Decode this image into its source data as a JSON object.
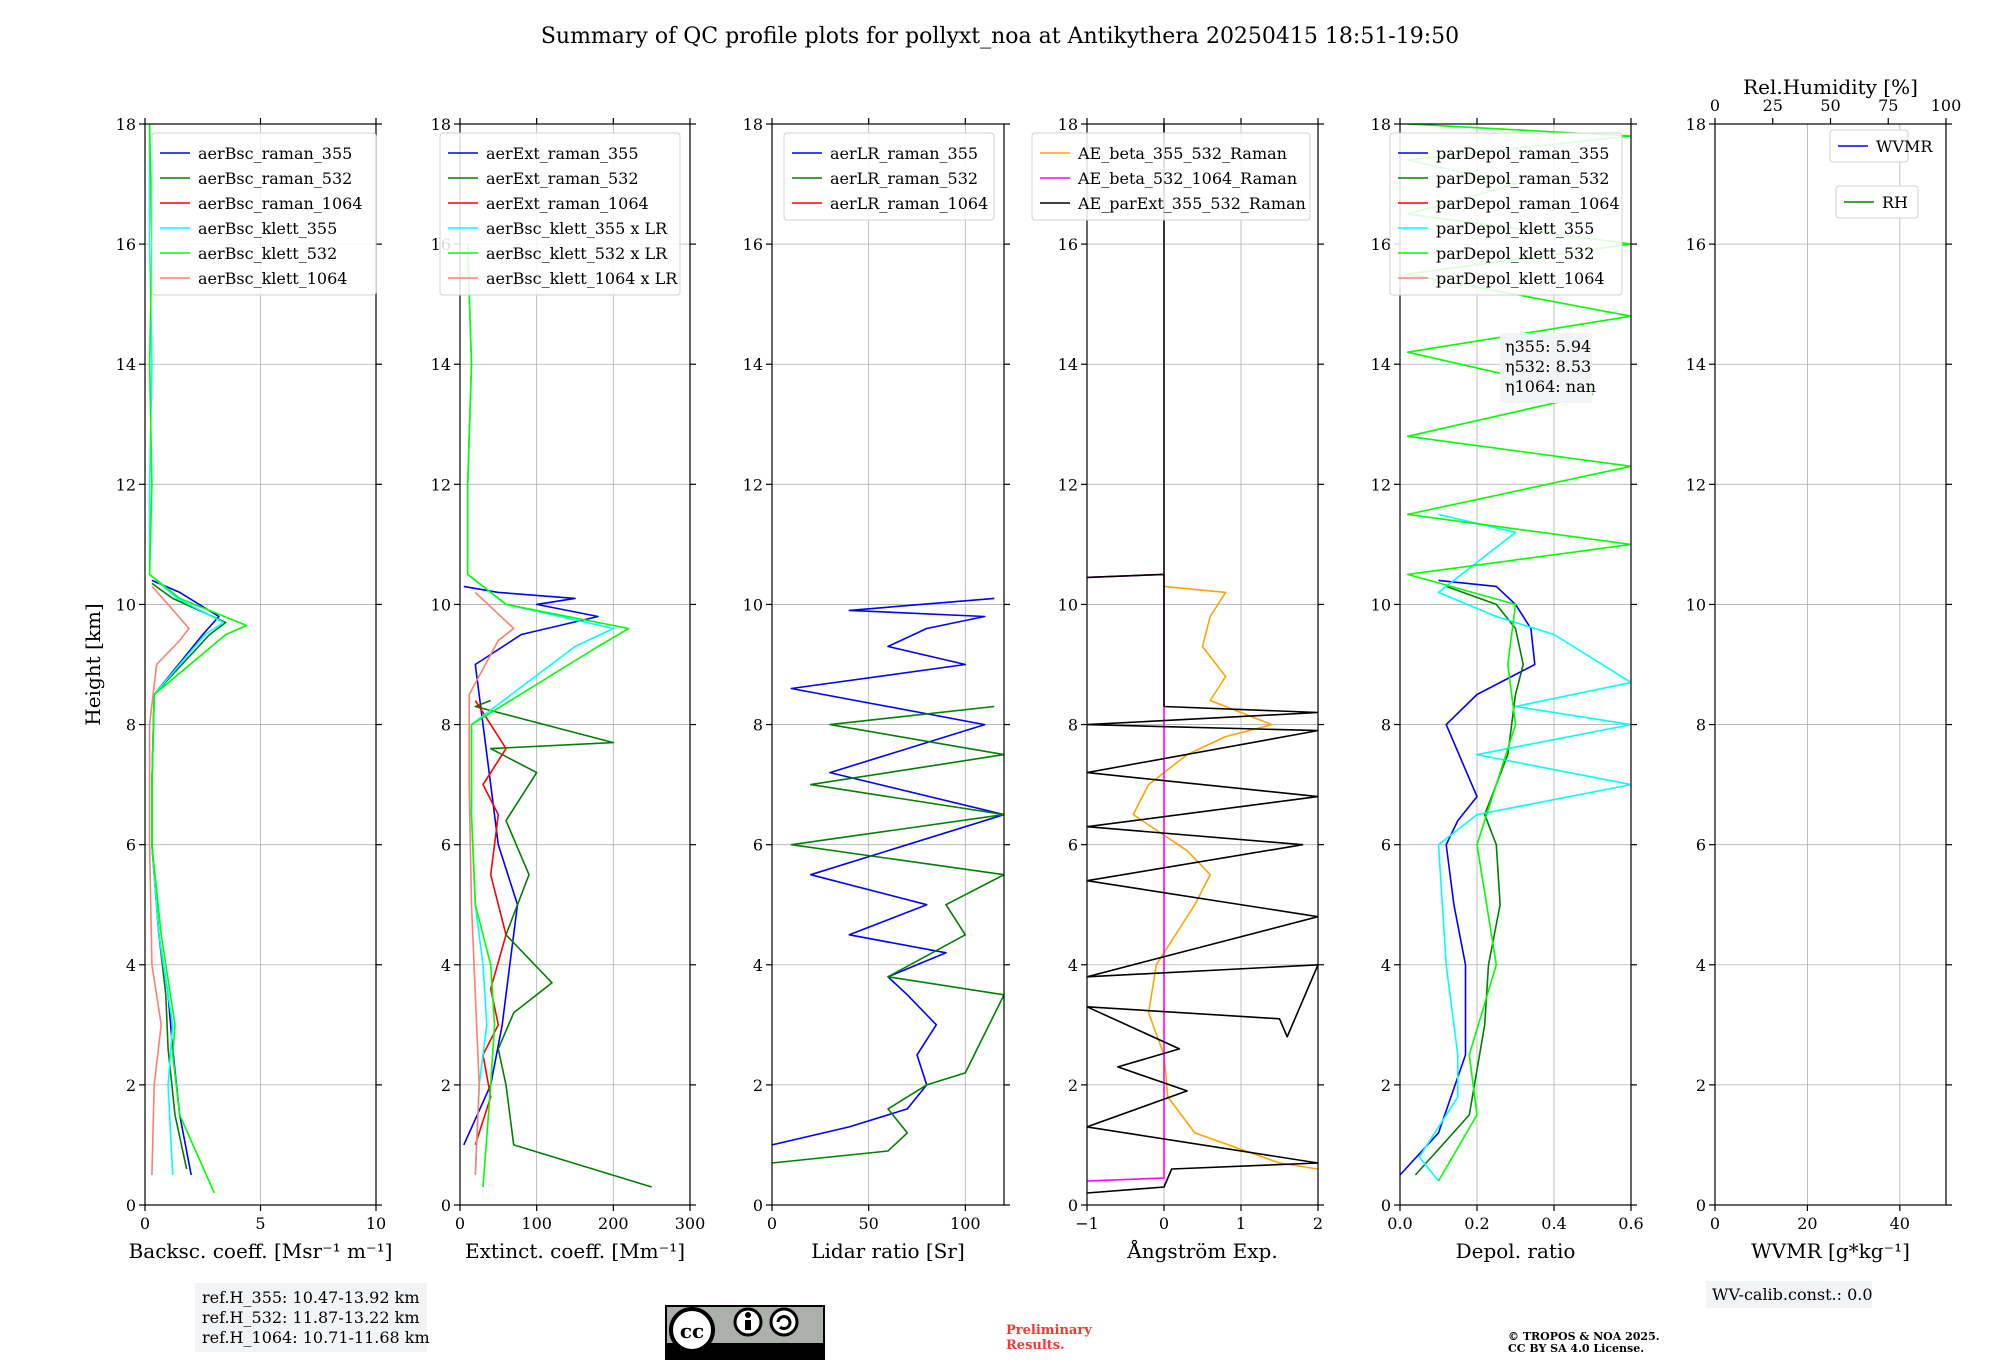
{
  "title": "Summary of QC profile plots for pollyxt_noa at Antikythera 20250415 18:51-19:50",
  "colors": {
    "c355": "#0000ff",
    "c532": "#008000",
    "c1064": "#ff0000",
    "k355": "#00ffff",
    "k532": "#00ff00",
    "k1064": "#fa8072",
    "ae1": "#ffa500",
    "ae2": "#ff00ff",
    "ae3": "#000000",
    "rh": "#008000"
  },
  "info": {
    "refh": [
      "ref.H_355: 10.47-13.92 km",
      "ref.H_532: 11.87-13.22 km",
      "ref.H_1064: 10.71-11.68 km"
    ],
    "eta": [
      "η355: 5.94",
      "η532: 8.53",
      "η1064: nan"
    ],
    "wv_calib": "WV-calib.const.: 0.0",
    "cc_by": "BY",
    "cc_sa": "SA",
    "preliminary": [
      "Preliminary",
      "Results."
    ],
    "copyright": [
      "© TROPOS & NOA 2025.",
      "CC BY SA 4.0 License."
    ],
    "hidden_lr_text": [
      "0",
      "0",
      "1064 x LR"
    ]
  },
  "chart_data": [
    {
      "type": "line",
      "id": "bsc",
      "xlabel": "Backsc. coeff. [Msr⁻¹ m⁻¹]",
      "ylabel": "Height [km]",
      "xlim": [
        0,
        10
      ],
      "ylim": [
        0,
        18
      ],
      "xticks": [
        0,
        5,
        10
      ],
      "yticks": [
        0,
        2,
        4,
        6,
        8,
        10,
        12,
        14,
        16,
        18
      ],
      "legend": [
        "aerBsc_raman_355",
        "aerBsc_raman_532",
        "aerBsc_raman_1064",
        "aerBsc_klett_355",
        "aerBsc_klett_532",
        "aerBsc_klett_1064"
      ],
      "series": [
        {
          "name": "aerBsc_raman_355",
          "color": "#0000ff",
          "x": [
            2,
            1.5,
            1.2,
            1.0,
            0.6,
            0.3,
            0.3,
            0.4,
            2.5,
            3.2,
            1.5,
            0.3
          ],
          "y": [
            0.5,
            1.5,
            2.6,
            3.5,
            4.5,
            6,
            7,
            8.5,
            9.5,
            9.8,
            10.2,
            10.4
          ]
        },
        {
          "name": "aerBsc_raman_532",
          "color": "#008000",
          "x": [
            1.8,
            1.3,
            1.0,
            0.9,
            0.6,
            0.3,
            0.3,
            0.4,
            2.8,
            3.5,
            1.2,
            0.3
          ],
          "y": [
            0.6,
            1.5,
            2.6,
            3.5,
            4.5,
            6,
            7,
            8.5,
            9.5,
            9.7,
            10.1,
            10.35
          ]
        },
        {
          "name": "aerBsc_klett_355",
          "color": "#00ffff",
          "x": [
            1.2,
            1.0,
            1.2,
            1.0,
            0.6,
            0.3,
            0.3,
            0.4,
            2.6,
            3.4,
            1.4,
            0.2,
            0.2,
            0.3,
            0.2,
            0.2
          ],
          "y": [
            0.5,
            2.0,
            3.0,
            3.5,
            4.5,
            6,
            7,
            8.5,
            9.5,
            9.7,
            10.1,
            10.5,
            12,
            14,
            16,
            18
          ]
        },
        {
          "name": "aerBsc_klett_532",
          "color": "#00ff00",
          "x": [
            3,
            1.5,
            1.2,
            1.3,
            0.7,
            0.3,
            0.3,
            0.4,
            3.5,
            4.4,
            1.5,
            0.2,
            0.3,
            0.2,
            0.3,
            0.2
          ],
          "y": [
            0.2,
            1.5,
            2.5,
            3.0,
            4.5,
            6,
            7,
            8.5,
            9.5,
            9.65,
            10.1,
            10.5,
            12,
            14,
            16,
            18
          ]
        },
        {
          "name": "aerBsc_klett_1064",
          "color": "#fa8072",
          "x": [
            0.3,
            0.4,
            0.7,
            0.3,
            0.2,
            0.2,
            0.5,
            1.5,
            1.9,
            1.0,
            0.3
          ],
          "y": [
            0.5,
            2.0,
            3.0,
            4.0,
            6.0,
            8.0,
            9.0,
            9.4,
            9.6,
            10.0,
            10.3
          ]
        }
      ]
    },
    {
      "type": "line",
      "id": "ext",
      "xlabel": "Extinct. coeff. [Mm⁻¹]",
      "xlim": [
        0,
        300
      ],
      "ylim": [
        0,
        18
      ],
      "xticks": [
        0,
        100,
        200,
        300
      ],
      "yticks": [
        0,
        2,
        4,
        6,
        8,
        10,
        12,
        14,
        16,
        18
      ],
      "legend": [
        "aerExt_raman_355",
        "aerExt_raman_532",
        "aerExt_raman_1064",
        "aerBsc_klett_355 x LR",
        "aerBsc_klett_532 x LR",
        "aerBsc_klett_1064 x LR"
      ],
      "series": [
        {
          "name": "aerExt_raman_355",
          "color": "#0000ff",
          "x": [
            5,
            40,
            55,
            60,
            65,
            75,
            50,
            40,
            30,
            20,
            80,
            180,
            100,
            150,
            50,
            5
          ],
          "y": [
            1.0,
            2.0,
            3.0,
            3.5,
            4.0,
            5.0,
            6.0,
            7.0,
            8.0,
            9.0,
            9.5,
            9.8,
            10.0,
            10.1,
            10.2,
            10.3
          ]
        },
        {
          "name": "aerExt_raman_532",
          "color": "#008000",
          "x": [
            250,
            70,
            60,
            50,
            70,
            120,
            60,
            90,
            60,
            100,
            40,
            200,
            20,
            40
          ],
          "y": [
            0.3,
            1.0,
            2.0,
            2.6,
            3.2,
            3.7,
            4.5,
            5.5,
            6.4,
            7.2,
            7.6,
            7.7,
            8.3,
            8.4
          ]
        },
        {
          "name": "aerExt_raman_1064",
          "color": "#ff0000",
          "x": [
            20,
            40,
            30,
            50,
            40,
            60,
            40,
            50,
            30,
            60,
            40,
            20
          ],
          "y": [
            1.0,
            1.8,
            2.5,
            3.0,
            3.6,
            4.5,
            5.5,
            6.5,
            7.0,
            7.6,
            8.0,
            8.4
          ]
        },
        {
          "name": "aerBsc_klett_355 x LR",
          "color": "#00ffff",
          "x": [
            20,
            25,
            35,
            30,
            20,
            15,
            15,
            150,
            200,
            60,
            10,
            10,
            15,
            10
          ],
          "y": [
            0.5,
            2.0,
            3.0,
            4.0,
            5.0,
            6.5,
            8.0,
            9.3,
            9.6,
            10.0,
            10.5,
            12,
            14,
            16
          ]
        },
        {
          "name": "aerBsc_klett_532 x LR",
          "color": "#00ff00",
          "x": [
            30,
            40,
            45,
            40,
            20,
            15,
            15,
            180,
            220,
            60,
            10,
            10,
            15,
            10
          ],
          "y": [
            0.3,
            2.0,
            3.0,
            4.0,
            5.0,
            6.5,
            8.0,
            9.3,
            9.6,
            10.0,
            10.5,
            12,
            14,
            16
          ]
        },
        {
          "name": "aerBsc_klett_1064 x LR",
          "color": "#fa8072",
          "x": [
            20,
            25,
            20,
            15,
            12,
            12,
            50,
            70,
            20
          ],
          "y": [
            0.5,
            2.0,
            3.5,
            5.0,
            7.0,
            8.5,
            9.4,
            9.6,
            10.2
          ]
        }
      ]
    },
    {
      "type": "line",
      "id": "lr",
      "xlabel": "Lidar ratio [Sr]",
      "xlim": [
        0,
        120
      ],
      "ylim": [
        0,
        18
      ],
      "xticks": [
        0,
        50,
        100
      ],
      "yticks": [
        0,
        2,
        4,
        6,
        8,
        10,
        12,
        14,
        16,
        18
      ],
      "legend": [
        "aerLR_raman_355",
        "aerLR_raman_532",
        "aerLR_raman_1064"
      ],
      "series": [
        {
          "name": "aerLR_raman_355",
          "color": "#0000ff",
          "x": [
            0,
            40,
            70,
            80,
            75,
            85,
            70,
            60,
            90,
            40,
            80,
            20,
            120,
            30,
            110,
            10,
            100,
            60,
            80,
            110,
            40,
            115
          ],
          "y": [
            1.0,
            1.3,
            1.6,
            2.0,
            2.5,
            3.0,
            3.5,
            3.8,
            4.2,
            4.5,
            5.0,
            5.5,
            6.5,
            7.2,
            8.0,
            8.6,
            9.0,
            9.3,
            9.6,
            9.8,
            9.9,
            10.1
          ]
        },
        {
          "name": "aerLR_raman_532",
          "color": "#008000",
          "x": [
            0,
            60,
            70,
            60,
            80,
            100,
            120,
            60,
            100,
            90,
            120,
            10,
            120,
            20,
            120,
            30,
            115
          ],
          "y": [
            0.7,
            0.9,
            1.2,
            1.6,
            2.0,
            2.2,
            3.5,
            3.8,
            4.5,
            5.0,
            5.5,
            6.0,
            6.5,
            7.0,
            7.5,
            8.0,
            8.3
          ]
        }
      ]
    },
    {
      "type": "line",
      "id": "ae",
      "xlabel": "Ångström Exp.",
      "xlim": [
        -1,
        2
      ],
      "ylim": [
        0,
        18
      ],
      "xticks": [
        -1,
        0,
        1,
        2
      ],
      "yticks": [
        0,
        2,
        4,
        6,
        8,
        10,
        12,
        14,
        16,
        18
      ],
      "legend": [
        "AE_beta_355_532_Raman",
        "AE_beta_532_1064_Raman",
        "AE_parExt_355_532_Raman"
      ],
      "series": [
        {
          "name": "AE_beta_355_532_Raman",
          "color": "#ffa500",
          "x": [
            2,
            1.5,
            0.4,
            0.05,
            0,
            -0.2,
            -0.1,
            0.2,
            0.4,
            0.6,
            0.3,
            -0.4,
            -0.2,
            0.3,
            0.8,
            1.4,
            0.6,
            0.8,
            0.5,
            0.6,
            0.8,
            0,
            0
          ],
          "y": [
            0.6,
            0.7,
            1.2,
            1.8,
            2.5,
            3.2,
            4.0,
            4.6,
            5.0,
            5.5,
            5.9,
            6.5,
            7.0,
            7.5,
            7.8,
            8.0,
            8.4,
            8.8,
            9.3,
            9.8,
            10.2,
            10.3,
            10.5
          ]
        },
        {
          "name": "AE_beta_532_1064_Raman",
          "color": "#ff00ff",
          "x": [
            -1,
            0,
            0,
            -1
          ],
          "y": [
            0.4,
            0.45,
            10.5,
            10.45
          ]
        },
        {
          "name": "AE_parExt_355_532_Raman",
          "color": "#000000",
          "x": [
            -1,
            0,
            0.1,
            2,
            -1,
            0.3,
            -0.6,
            0.2,
            -1,
            1.5,
            1.6,
            2,
            -1,
            2,
            -1,
            1.8,
            -1,
            2,
            -1,
            2,
            -1,
            2,
            0,
            0,
            -1
          ],
          "y": [
            0.2,
            0.3,
            0.6,
            0.7,
            1.3,
            1.9,
            2.3,
            2.6,
            3.3,
            3.1,
            2.8,
            4.0,
            3.8,
            4.8,
            5.4,
            6.0,
            6.3,
            6.8,
            7.2,
            7.9,
            8.0,
            8.2,
            8.3,
            10.5,
            10.45
          ]
        },
        {
          "name": "AE_parExt_355_532_Raman_top",
          "color": "#000000",
          "x": [
            0,
            0
          ],
          "y": [
            10.5,
            18
          ]
        }
      ]
    },
    {
      "type": "line",
      "id": "depol",
      "xlabel": "Depol. ratio",
      "xlim": [
        0,
        0.6
      ],
      "ylim": [
        0,
        18
      ],
      "xticks": [
        0.0,
        0.2,
        0.4,
        0.6
      ],
      "yticks": [
        0,
        2,
        4,
        6,
        8,
        10,
        12,
        14,
        16,
        18
      ],
      "legend": [
        "parDepol_raman_355",
        "parDepol_raman_532",
        "parDepol_raman_1064",
        "parDepol_klett_355",
        "parDepol_klett_532",
        "parDepol_klett_1064"
      ],
      "series": [
        {
          "name": "parDepol_raman_355",
          "color": "#0000ff",
          "x": [
            0.0,
            0.1,
            0.17,
            0.17,
            0.14,
            0.12,
            0.15,
            0.2,
            0.12,
            0.2,
            0.35,
            0.34,
            0.3,
            0.25,
            0.1
          ],
          "y": [
            0.5,
            1.2,
            2.5,
            4.0,
            5.0,
            6.0,
            6.4,
            6.8,
            8.0,
            8.5,
            9.0,
            9.6,
            10.0,
            10.3,
            10.4
          ]
        },
        {
          "name": "parDepol_raman_532",
          "color": "#008000",
          "x": [
            0.04,
            0.18,
            0.22,
            0.23,
            0.26,
            0.25,
            0.22,
            0.28,
            0.3,
            0.32,
            0.3,
            0.25,
            0.12
          ],
          "y": [
            0.5,
            1.5,
            3.0,
            4.0,
            5.0,
            6.0,
            6.5,
            7.5,
            8.5,
            9.0,
            9.6,
            10.0,
            10.3
          ]
        },
        {
          "name": "parDepol_klett_355",
          "color": "#00ffff",
          "x": [
            0.1,
            0.05,
            0.15,
            0.15,
            0.12,
            0.1,
            0.2,
            0.6,
            0.2,
            0.6,
            0.3,
            0.6,
            0.4,
            0.25,
            0.1,
            0.3,
            0.1
          ],
          "y": [
            0.4,
            0.8,
            1.8,
            2.5,
            4.0,
            6.0,
            6.5,
            7.0,
            7.5,
            8.0,
            8.3,
            8.7,
            9.5,
            9.8,
            10.2,
            11.2,
            11.5
          ]
        },
        {
          "name": "parDepol_klett_532",
          "color": "#00ff00",
          "x": [
            0.1,
            0.2,
            0.18,
            0.25,
            0.2,
            0.3,
            0.28,
            0.3,
            0.02,
            0.6,
            0.02,
            0.6,
            0.02,
            0.5,
            0.02,
            0.6,
            0.02,
            0.6,
            0.02,
            0.3,
            0.02,
            0.6,
            0.02
          ],
          "y": [
            0.4,
            1.5,
            2.5,
            4.0,
            6.0,
            8.0,
            9.0,
            10.0,
            10.5,
            11.0,
            11.5,
            12.3,
            12.8,
            13.5,
            14.2,
            14.8,
            15.5,
            16.0,
            16.5,
            17.0,
            17.4,
            17.8,
            18.0
          ]
        }
      ]
    },
    {
      "type": "line",
      "id": "wv",
      "xlabel": "WVMR [g*kg⁻¹]",
      "x2label": "Rel.Humidity [%]",
      "xlim": [
        0,
        50
      ],
      "x2lim": [
        0,
        100
      ],
      "ylim": [
        0,
        18
      ],
      "xticks": [
        0,
        20,
        40
      ],
      "x2ticks": [
        0,
        25,
        50,
        75,
        100
      ],
      "yticks": [
        0,
        2,
        4,
        6,
        8,
        10,
        12,
        14,
        16,
        18
      ],
      "legend": [
        "WVMR",
        "RH"
      ],
      "series": []
    }
  ]
}
